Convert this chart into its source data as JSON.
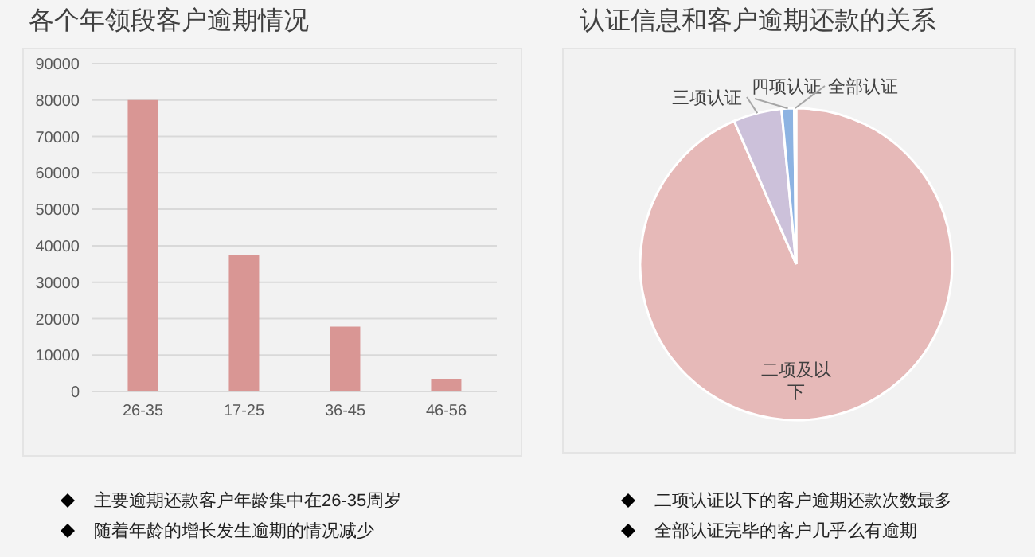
{
  "chart_data": [
    {
      "type": "bar",
      "title": "各个年领段客户逾期情况",
      "categories": [
        "26-35",
        "17-25",
        "36-45",
        "46-56"
      ],
      "values": [
        80000,
        37500,
        17800,
        3500
      ],
      "color": "#d99694",
      "ylim": [
        0,
        90000
      ],
      "yticks": [
        0,
        10000,
        20000,
        30000,
        40000,
        50000,
        60000,
        70000,
        80000,
        90000
      ],
      "grid": "y",
      "annotations": [
        "主要逾期还款客户年龄集中在26-35周岁",
        "随着年龄的增长发生逾期的情况减少"
      ]
    },
    {
      "type": "pie",
      "title": "认证信息和客户逾期还款的关系",
      "categories": [
        "二项及以下",
        "三项认证",
        "四项认证",
        "全部认证"
      ],
      "values": [
        93.5,
        5,
        1.3,
        0.2
      ],
      "colors": [
        "#e6b9b8",
        "#ccc1da",
        "#8db3e2",
        "#4f81bd"
      ],
      "annotations": [
        "二项认证以下的客户逾期还款次数最多",
        "全部认证完毕的客户几乎么有逾期"
      ]
    }
  ]
}
